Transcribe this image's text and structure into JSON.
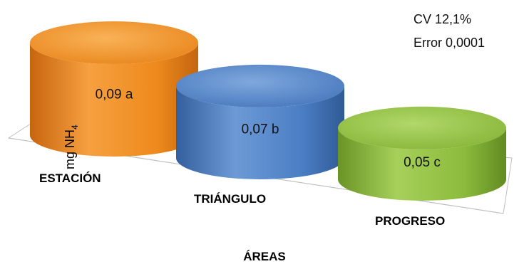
{
  "chart_data": {
    "type": "bar",
    "style": "3d-cylinder",
    "categories": [
      "ESTACIÓN",
      "TRIÁNGULO",
      "PROGRESO"
    ],
    "values": [
      0.09,
      0.07,
      0.05
    ],
    "data_labels": [
      "0,09 a",
      "0,07 b",
      "0,05 c"
    ],
    "colors": [
      "#ee8a1d",
      "#4a7ec4",
      "#8cbb3c"
    ],
    "xlabel": "ÁREAS",
    "ylabel": "mg NH",
    "ylabel_subscript": "4",
    "ylim": [
      0,
      0.1
    ],
    "grid": false,
    "legend": "none",
    "annotations": [
      "CV 12,1%",
      "Error 0,0001"
    ]
  }
}
